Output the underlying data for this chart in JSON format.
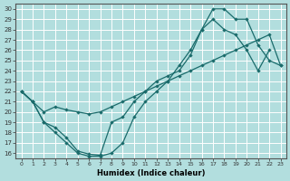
{
  "xlabel": "Humidex (Indice chaleur)",
  "ylabel": "",
  "background_color": "#b2dede",
  "grid_color": "#ffffff",
  "line_color": "#1a6b6b",
  "xlim": [
    -0.5,
    23.5
  ],
  "ylim": [
    15.5,
    30.5
  ],
  "xticks": [
    0,
    1,
    2,
    3,
    4,
    5,
    6,
    7,
    8,
    9,
    10,
    11,
    12,
    13,
    14,
    15,
    16,
    17,
    18,
    19,
    20,
    21,
    22,
    23
  ],
  "yticks": [
    16,
    17,
    18,
    19,
    20,
    21,
    22,
    23,
    24,
    25,
    26,
    27,
    28,
    29,
    30
  ],
  "line1_x": [
    0,
    1,
    2,
    3,
    4,
    5,
    6,
    7,
    8,
    9,
    10,
    11,
    12,
    13,
    14,
    15,
    16,
    17,
    18,
    19,
    20,
    21,
    22
  ],
  "line1_y": [
    22,
    21,
    19,
    18,
    17,
    16,
    15.7,
    15.7,
    16,
    17,
    19.5,
    21,
    22,
    23,
    24.5,
    26,
    28,
    29,
    28,
    27.5,
    26,
    24,
    26
  ],
  "line2_x": [
    0,
    1,
    2,
    3,
    4,
    5,
    6,
    7,
    8,
    9,
    10,
    11,
    12,
    13,
    14,
    15,
    16,
    17,
    18,
    19,
    20,
    21,
    22,
    23
  ],
  "line2_y": [
    22,
    21,
    19,
    18.5,
    17.5,
    16.2,
    15.9,
    15.8,
    19,
    19.5,
    21,
    22,
    23,
    23.5,
    24,
    25.5,
    28,
    30,
    30,
    29,
    29,
    26.5,
    25,
    24.5
  ],
  "line3_x": [
    0,
    1,
    2,
    3,
    4,
    5,
    6,
    7,
    8,
    9,
    10,
    11,
    12,
    13,
    14,
    15,
    16,
    17,
    18,
    19,
    20,
    21,
    22,
    23
  ],
  "line3_y": [
    22,
    21,
    20,
    20.5,
    20.2,
    20.0,
    19.8,
    20.0,
    20.5,
    21.0,
    21.5,
    22.0,
    22.5,
    23.0,
    23.5,
    24.0,
    24.5,
    25.0,
    25.5,
    26.0,
    26.5,
    27.0,
    27.5,
    24.5
  ]
}
